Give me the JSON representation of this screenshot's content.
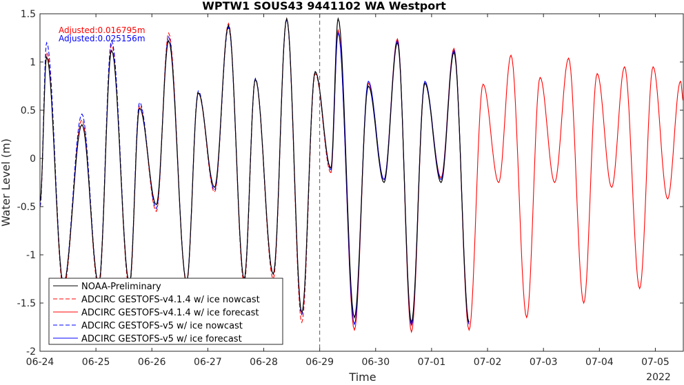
{
  "chart_data": {
    "type": "line",
    "title": "WPTW1 SOUS43 9441102 WA Westport",
    "xlabel": "Time",
    "ylabel": "Water Level (m)",
    "x_unit": "day",
    "x_ticks": [
      "06-24",
      "06-25",
      "06-26",
      "06-27",
      "06-28",
      "06-29",
      "06-30",
      "07-01",
      "07-02",
      "07-03",
      "07-04",
      "07-05"
    ],
    "x_year_label": "2022",
    "xlim": [
      0,
      11.5
    ],
    "ylim": [
      -2,
      1.5
    ],
    "y_ticks": [
      "-2",
      "-1.5",
      "-1",
      "-0.5",
      "0",
      "0.5",
      "1",
      "1.5"
    ],
    "grid": false,
    "vline_x": 5,
    "annotations": [
      {
        "text": "Adjusted:0.016795m",
        "color": "#ff0000"
      },
      {
        "text": "Adjusted:0.025156m",
        "color": "#0000ff"
      }
    ],
    "legend": {
      "placement": "bottom-left",
      "entries": [
        {
          "label": "NOAA-Preliminary",
          "color": "#000000",
          "dash": "solid"
        },
        {
          "label": "ADCIRC GESTOFS-v4.1.4 w/ ice nowcast",
          "color": "#ff0000",
          "dash": "dashed"
        },
        {
          "label": "ADCIRC GESTOFS-v4.1.4 w/ ice forecast",
          "color": "#ff0000",
          "dash": "solid"
        },
        {
          "label": "ADCIRC GESTOFS-v5 w/ ice nowcast",
          "color": "#0000ff",
          "dash": "dashed"
        },
        {
          "label": "ADCIRC GESTOFS-v5 w/ ice forecast",
          "color": "#0000ff",
          "dash": "solid"
        }
      ]
    },
    "extrema": {
      "x": [
        0.0,
        0.12,
        0.42,
        0.75,
        1.05,
        1.28,
        1.6,
        1.78,
        2.08,
        2.3,
        2.62,
        2.83,
        3.12,
        3.37,
        3.65,
        3.85,
        4.17,
        4.41,
        4.68,
        4.92,
        5.2,
        5.33,
        5.62,
        5.87,
        6.15,
        6.39,
        6.64,
        6.88,
        7.17,
        7.4,
        7.67,
        7.92,
        8.2,
        8.42,
        8.7,
        8.94,
        9.2,
        9.45,
        9.72,
        9.96,
        10.22,
        10.45,
        10.72,
        10.96,
        11.22,
        11.45,
        11.5
      ],
      "series": [
        {
          "name": "NOAA-Preliminary",
          "values": [
            -0.45,
            1.05,
            -1.3,
            0.35,
            -1.3,
            1.12,
            -1.3,
            0.52,
            -0.48,
            1.22,
            -1.28,
            0.68,
            -0.3,
            1.38,
            -1.25,
            0.82,
            -1.2,
            1.45,
            -1.6,
            0.9,
            -0.1,
            1.45,
            -1.65,
            0.75,
            -0.25,
            1.2,
            -1.7,
            0.78,
            -0.25,
            1.1,
            -1.7,
            null,
            null,
            null,
            null,
            null,
            null,
            null,
            null,
            null,
            null,
            null,
            null,
            null,
            null,
            null,
            null
          ]
        },
        {
          "name": "ADCIRC GESTOFS-v4.1.4 w/ ice nowcast",
          "values": [
            -0.5,
            1.1,
            -1.35,
            0.4,
            -1.35,
            1.18,
            -1.35,
            0.55,
            -0.55,
            1.3,
            -1.3,
            0.68,
            -0.35,
            1.4,
            -1.3,
            0.82,
            -1.25,
            1.45,
            -1.7,
            0.88,
            -0.15,
            null,
            null,
            null,
            null,
            null,
            null,
            null,
            null,
            null,
            null,
            null,
            null,
            null,
            null,
            null,
            null,
            null,
            null,
            null,
            null,
            null,
            null,
            null,
            null,
            null,
            null
          ]
        },
        {
          "name": "ADCIRC GESTOFS-v4.1.4 w/ ice forecast",
          "values": [
            null,
            null,
            null,
            null,
            null,
            null,
            null,
            null,
            null,
            null,
            null,
            null,
            null,
            null,
            null,
            null,
            null,
            null,
            null,
            null,
            -0.15,
            1.33,
            -1.78,
            0.78,
            -0.22,
            1.24,
            -1.8,
            0.78,
            -0.2,
            1.14,
            -1.78,
            0.77,
            -0.25,
            1.07,
            -1.65,
            0.84,
            -0.25,
            1.04,
            -1.5,
            0.88,
            -0.3,
            0.95,
            -1.35,
            0.95,
            -0.42,
            0.8,
            0.6
          ]
        },
        {
          "name": "ADCIRC GESTOFS-v5 w/ ice nowcast",
          "values": [
            -0.5,
            1.2,
            -1.3,
            0.46,
            -1.3,
            1.22,
            -1.3,
            0.58,
            -0.52,
            1.26,
            -1.28,
            0.7,
            -0.33,
            1.36,
            -1.25,
            0.83,
            -1.2,
            1.44,
            -1.62,
            0.9,
            -0.12,
            null,
            null,
            null,
            null,
            null,
            null,
            null,
            null,
            null,
            null,
            null,
            null,
            null,
            null,
            null,
            null,
            null,
            null,
            null,
            null,
            null,
            null,
            null,
            null,
            null,
            null
          ]
        },
        {
          "name": "ADCIRC GESTOFS-v5 w/ ice forecast",
          "values": [
            null,
            null,
            null,
            null,
            null,
            null,
            null,
            null,
            null,
            null,
            null,
            null,
            null,
            null,
            null,
            null,
            null,
            null,
            null,
            null,
            -0.12,
            1.3,
            -1.72,
            0.8,
            -0.22,
            1.22,
            -1.73,
            0.8,
            -0.22,
            1.12,
            -1.72,
            null,
            null,
            null,
            null,
            null,
            null,
            null,
            null,
            null,
            null,
            null,
            null,
            null,
            null,
            null,
            null
          ]
        }
      ]
    }
  }
}
